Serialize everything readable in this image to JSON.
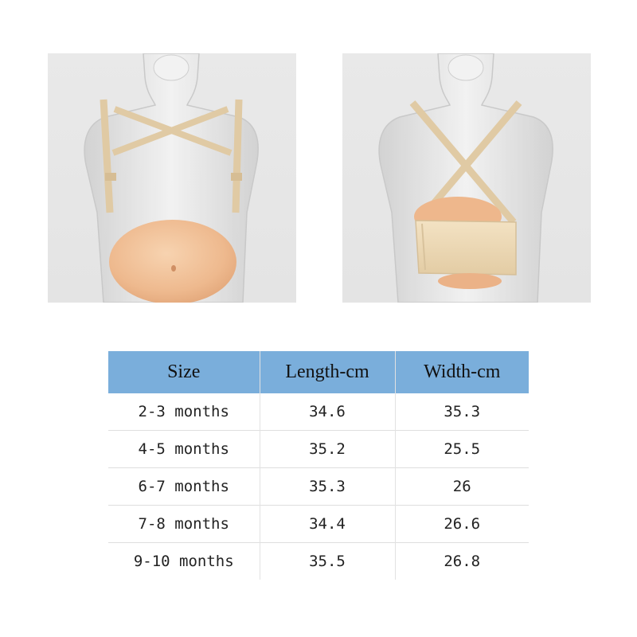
{
  "images": [
    {
      "name": "front-view",
      "description": "pregnancy belly front view"
    },
    {
      "name": "back-view",
      "description": "pregnancy belly back view"
    }
  ],
  "colors": {
    "header_bg": "#7aaedb",
    "skin": "#f0c29a",
    "strap": "#e2cca6",
    "mannequin": "#dcdcdc"
  },
  "table": {
    "headers": [
      "Size",
      "Length-cm",
      "Width-cm"
    ],
    "rows": [
      [
        "2-3 months",
        "34.6",
        "35.3"
      ],
      [
        "4-5 months",
        "35.2",
        "25.5"
      ],
      [
        "6-7 months",
        "35.3",
        "26"
      ],
      [
        "7-8 months",
        "34.4",
        "26.6"
      ],
      [
        "9-10 months",
        "35.5",
        "26.8"
      ]
    ]
  }
}
